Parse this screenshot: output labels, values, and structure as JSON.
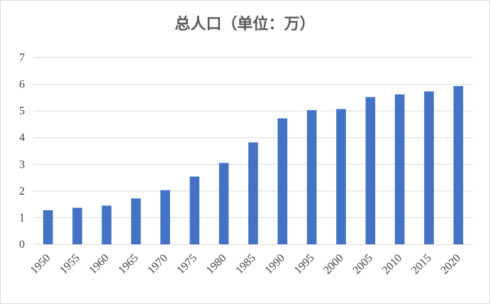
{
  "chart_data": {
    "type": "bar",
    "title": "总人口（单位：万）",
    "xlabel": "",
    "ylabel": "",
    "categories": [
      "1950",
      "1955",
      "1960",
      "1965",
      "1970",
      "1975",
      "1980",
      "1985",
      "1990",
      "1995",
      "2000",
      "2005",
      "2010",
      "2015",
      "2020"
    ],
    "values": [
      1.28,
      1.37,
      1.45,
      1.72,
      2.03,
      2.54,
      3.05,
      3.82,
      4.72,
      5.03,
      5.07,
      5.52,
      5.62,
      5.73,
      5.93
    ],
    "ylim": [
      0,
      7
    ],
    "yticks": [
      "0",
      "1",
      "2",
      "3",
      "4",
      "5",
      "6",
      "7"
    ],
    "grid": true,
    "bar_color": "#4472c4",
    "grid_color": "#d9d9d9"
  }
}
